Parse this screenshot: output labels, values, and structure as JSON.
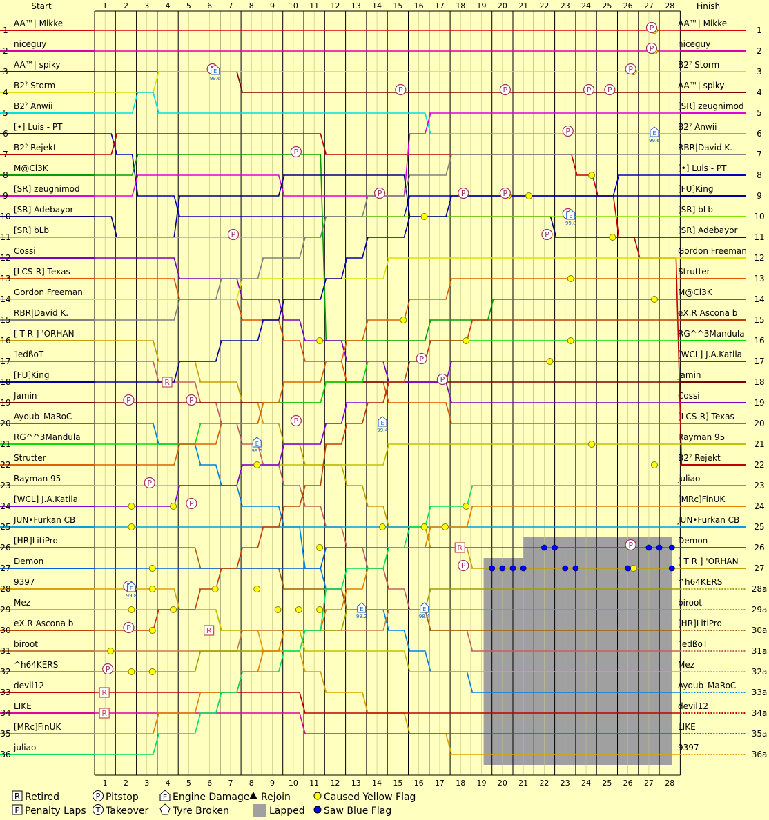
{
  "chart_data": {
    "type": "line",
    "title": "",
    "header_left": "Start",
    "header_right": "Finish",
    "laps": 28,
    "positions": 36,
    "start_order": [
      "AA™| Mikke",
      "niceguy",
      "AA™| spiky",
      "B2ˀ Storm",
      "B2ˀ Anwii",
      "[•] Luis - PT",
      "B2ˀ Rejekt",
      "M@Cl3K",
      "[SR] zeugnimod",
      "[SR] Adebayor",
      "[SR] bLb",
      "Cossi",
      "[LCS-R] Texas",
      "Gordon Freeman",
      "RBR|David K.",
      "[ T R ] 'ORHAN",
      "˥edßoT",
      "[FU]King",
      "Jamin",
      "Ayoub_MaRoC",
      "RG^^3Mandula",
      "Strutter",
      "Rayman 95",
      "[WCL] J.A.Katila",
      "JUN•Furkan CB",
      "[HR]LitiPro",
      "Demon",
      "9397",
      "Mez",
      "eX.R Ascona b",
      "biroot",
      "^h64KERS",
      "devil12",
      "LIKE",
      "[MRc]FinUK",
      "juliao"
    ],
    "finish_order": [
      "AA™| Mikke",
      "niceguy",
      "B2ˀ Storm",
      "AA™| spiky",
      "[SR] zeugnimod",
      "B2ˀ Anwii",
      "RBR|David K.",
      "[•] Luis - PT",
      "[FU]King",
      "[SR] bLb",
      "[SR] Adebayor",
      "Gordon Freeman",
      "Strutter",
      "M@Cl3K",
      "eX.R Ascona b",
      "RG^^3Mandula",
      "[WCL] J.A.Katila",
      "Jamin",
      "Cossi",
      "[LCS-R] Texas",
      "Rayman 95",
      "B2ˀ Rejekt",
      "juliao",
      "[MRc]FinUK",
      "JUN•Furkan CB",
      "Demon",
      "[ T R ] 'ORHAN",
      "^h64KERS",
      "biroot",
      "[HR]LitiPro",
      "˥edßoT",
      "Mez",
      "Ayoub_MaRoC",
      "devil12",
      "LIKE",
      "9397"
    ],
    "finish_position_labels": [
      "1",
      "2",
      "3",
      "4",
      "5",
      "6",
      "7",
      "8",
      "9",
      "10",
      "11",
      "12",
      "13",
      "14",
      "15",
      "16",
      "17",
      "18",
      "19",
      "20",
      "21",
      "22",
      "23",
      "24",
      "25",
      "26",
      "27",
      "28a",
      "29a",
      "30a",
      "31a",
      "32a",
      "33a",
      "34a",
      "35a",
      "36a"
    ],
    "colors": [
      "#e00000",
      "#e000a0",
      "#800000",
      "#e0e000",
      "#00e0e0",
      "#0000c0",
      "#c00000",
      "#00a000",
      "#e000e0",
      "#000080",
      "#80e000",
      "#8000c0",
      "#e05000",
      "#e0e000",
      "#808080",
      "#c0a000",
      "#c06060",
      "#0000a0",
      "#800000",
      "#0080e0",
      "#00e000",
      "#e06000",
      "#c0c000",
      "#8000e0",
      "#00a0e0",
      "#a06000",
      "#0060e0",
      "#e0a000",
      "#c0c000",
      "#c04000",
      "#c08040",
      "#a0a000",
      "#c00000",
      "#e000a0",
      "#e08000",
      "#00e060"
    ],
    "lap_ranks": {
      "AA™| Mikke": [
        1,
        1,
        1,
        1,
        1,
        1,
        1,
        1,
        1,
        1,
        1,
        1,
        1,
        1,
        1,
        1,
        1,
        1,
        1,
        1,
        1,
        1,
        1,
        1,
        1,
        1,
        1,
        1,
        1
      ],
      "niceguy": [
        2,
        2,
        2,
        2,
        2,
        2,
        2,
        2,
        2,
        2,
        2,
        2,
        2,
        2,
        2,
        2,
        2,
        2,
        2,
        2,
        2,
        2,
        2,
        2,
        2,
        2,
        2,
        2,
        2
      ],
      "AA™| spiky": [
        3,
        3,
        3,
        3,
        3,
        3,
        3,
        4,
        4,
        4,
        4,
        4,
        4,
        4,
        4,
        4,
        4,
        4,
        4,
        4,
        4,
        4,
        4,
        4,
        4,
        4,
        4,
        4,
        4
      ],
      "B2ˀ Storm": [
        4,
        4,
        4,
        3,
        3,
        3,
        3,
        3,
        3,
        3,
        3,
        3,
        3,
        3,
        3,
        3,
        3,
        3,
        3,
        3,
        3,
        3,
        3,
        3,
        3,
        3,
        3,
        3,
        3
      ],
      "B2ˀ Anwii": [
        5,
        5,
        4,
        5,
        5,
        5,
        5,
        5,
        5,
        5,
        5,
        5,
        5,
        5,
        5,
        5,
        6,
        6,
        6,
        6,
        6,
        6,
        6,
        6,
        6,
        6,
        6,
        6,
        6
      ],
      "[•] Luis - PT": [
        6,
        7,
        9,
        9,
        10,
        10,
        10,
        10,
        10,
        10,
        10,
        10,
        10,
        10,
        10,
        9,
        9,
        9,
        9,
        9,
        9,
        9,
        9,
        9,
        9,
        8,
        8,
        8,
        8
      ],
      "B2ˀ Rejekt": [
        7,
        6,
        6,
        6,
        6,
        6,
        6,
        6,
        6,
        6,
        6,
        7,
        7,
        7,
        7,
        7,
        7,
        7,
        7,
        7,
        7,
        7,
        7,
        8,
        9,
        11,
        12,
        12,
        22
      ],
      "M@Cl3K": [
        8,
        8,
        7,
        7,
        7,
        7,
        7,
        7,
        7,
        7,
        7,
        16,
        16,
        16,
        16,
        16,
        15,
        15,
        15,
        14,
        14,
        14,
        14,
        14,
        14,
        14,
        14,
        14,
        14
      ],
      "[SR] zeugnimod": [
        9,
        9,
        8,
        8,
        8,
        8,
        8,
        8,
        8,
        9,
        9,
        9,
        9,
        9,
        9,
        6,
        5,
        5,
        5,
        5,
        5,
        5,
        5,
        5,
        5,
        5,
        5,
        5,
        5
      ],
      "[SR] Adebayor": [
        10,
        11,
        11,
        11,
        9,
        9,
        9,
        9,
        9,
        8,
        8,
        8,
        8,
        8,
        8,
        10,
        10,
        10,
        10,
        10,
        10,
        10,
        11,
        11,
        11,
        11,
        11,
        11,
        11
      ]
    },
    "pitstops": [
      {
        "lap": 2,
        "pos": 19
      },
      {
        "lap": 6,
        "pos": 3
      },
      {
        "lap": 7,
        "pos": 11
      },
      {
        "lap": 10,
        "pos": 7
      },
      {
        "lap": 10,
        "pos": 20
      },
      {
        "lap": 14,
        "pos": 9
      },
      {
        "lap": 15,
        "pos": 4
      },
      {
        "lap": 16,
        "pos": 17
      },
      {
        "lap": 17,
        "pos": 18
      },
      {
        "lap": 18,
        "pos": 9
      },
      {
        "lap": 20,
        "pos": 4
      },
      {
        "lap": 20,
        "pos": 9
      },
      {
        "lap": 22,
        "pos": 11
      },
      {
        "lap": 23,
        "pos": 10
      },
      {
        "lap": 23,
        "pos": 6
      },
      {
        "lap": 24,
        "pos": 4
      },
      {
        "lap": 25,
        "pos": 4
      },
      {
        "lap": 27,
        "pos": 1
      },
      {
        "lap": 27,
        "pos": 2
      },
      {
        "lap": 26,
        "pos": 3
      },
      {
        "lap": 3,
        "pos": 23
      },
      {
        "lap": 2,
        "pos": 28
      },
      {
        "lap": 2,
        "pos": 30
      },
      {
        "lap": 1,
        "pos": 32
      },
      {
        "lap": 5,
        "pos": 24
      },
      {
        "lap": 5,
        "pos": 19
      },
      {
        "lap": 18,
        "pos": 27
      },
      {
        "lap": 26,
        "pos": 26
      }
    ],
    "retired": [
      {
        "lap": 1,
        "pos": 33
      },
      {
        "lap": 1,
        "pos": 34
      },
      {
        "lap": 4,
        "pos": 18
      },
      {
        "lap": 6,
        "pos": 30
      },
      {
        "lap": 18,
        "pos": 26
      }
    ],
    "engine_damage": [
      {
        "lap": 6,
        "pos": 3,
        "label": "99.6"
      },
      {
        "lap": 8,
        "pos": 21,
        "label": "99.6"
      },
      {
        "lap": 13,
        "pos": 29,
        "label": "99.2"
      },
      {
        "lap": 16,
        "pos": 29,
        "label": "98.4"
      },
      {
        "lap": 14,
        "pos": 20,
        "label": "99.4"
      },
      {
        "lap": 27,
        "pos": 6,
        "label": "99.6"
      },
      {
        "lap": 23,
        "pos": 10,
        "label": "99.8"
      },
      {
        "lap": 2,
        "pos": 28,
        "label": "99.8"
      }
    ],
    "yellow_flags": [
      {
        "lap": 27,
        "pos": 1
      },
      {
        "lap": 27,
        "pos": 2
      },
      {
        "lap": 26,
        "pos": 3
      },
      {
        "lap": 16,
        "pos": 10
      },
      {
        "lap": 24,
        "pos": 8
      },
      {
        "lap": 20,
        "pos": 9
      },
      {
        "lap": 21,
        "pos": 9
      },
      {
        "lap": 25,
        "pos": 11
      },
      {
        "lap": 23,
        "pos": 13
      },
      {
        "lap": 27,
        "pos": 14
      },
      {
        "lap": 15,
        "pos": 15
      },
      {
        "lap": 11,
        "pos": 16
      },
      {
        "lap": 18,
        "pos": 16
      },
      {
        "lap": 23,
        "pos": 16
      },
      {
        "lap": 22,
        "pos": 17
      },
      {
        "lap": 24,
        "pos": 21
      },
      {
        "lap": 8,
        "pos": 22
      },
      {
        "lap": 27,
        "pos": 22
      },
      {
        "lap": 18,
        "pos": 24
      },
      {
        "lap": 2,
        "pos": 24
      },
      {
        "lap": 4,
        "pos": 24
      },
      {
        "lap": 14,
        "pos": 25
      },
      {
        "lap": 16,
        "pos": 25
      },
      {
        "lap": 17,
        "pos": 25
      },
      {
        "lap": 2,
        "pos": 25
      },
      {
        "lap": 11,
        "pos": 26
      },
      {
        "lap": 3,
        "pos": 27
      },
      {
        "lap": 26,
        "pos": 27
      },
      {
        "lap": 3,
        "pos": 28
      },
      {
        "lap": 6,
        "pos": 28
      },
      {
        "lap": 8,
        "pos": 28
      },
      {
        "lap": 2,
        "pos": 29
      },
      {
        "lap": 4,
        "pos": 29
      },
      {
        "lap": 9,
        "pos": 29
      },
      {
        "lap": 10,
        "pos": 29
      },
      {
        "lap": 11,
        "pos": 29
      },
      {
        "lap": 3,
        "pos": 30
      },
      {
        "lap": 1,
        "pos": 31
      },
      {
        "lap": 2,
        "pos": 32
      },
      {
        "lap": 3,
        "pos": 32
      }
    ],
    "blue_flags": [
      {
        "lap": 19,
        "pos": 27
      },
      {
        "lap": 19.5,
        "pos": 27
      },
      {
        "lap": 20,
        "pos": 27
      },
      {
        "lap": 20.5,
        "pos": 27
      },
      {
        "lap": 21.5,
        "pos": 26
      },
      {
        "lap": 22,
        "pos": 26
      },
      {
        "lap": 22.5,
        "pos": 27
      },
      {
        "lap": 23,
        "pos": 27
      },
      {
        "lap": 25.5,
        "pos": 27
      },
      {
        "lap": 26.5,
        "pos": 26
      },
      {
        "lap": 27,
        "pos": 26
      },
      {
        "lap": 27.6,
        "pos": 26
      },
      {
        "lap": 27.6,
        "pos": 27
      }
    ],
    "lapped_regions": [
      {
        "lap_from": 18.6,
        "lap_to": 27.6,
        "pos_from": 26.5,
        "pos_to": 36.5
      },
      {
        "lap_from": 20.5,
        "lap_to": 27.6,
        "pos_from": 25.5,
        "pos_to": 26.5
      }
    ],
    "legend": [
      {
        "symbol": "R",
        "shape": "square",
        "label": "Retired"
      },
      {
        "symbol": "P",
        "shape": "square",
        "label": "Penalty Laps"
      },
      {
        "symbol": "P",
        "shape": "circle",
        "label": "Pitstop"
      },
      {
        "symbol": "T",
        "shape": "circle",
        "label": "Takeover"
      },
      {
        "symbol": "E",
        "shape": "house",
        "label": "Engine Damage"
      },
      {
        "symbol": "",
        "shape": "pentagon",
        "label": "Tyre Broken"
      },
      {
        "symbol": "",
        "shape": "triangle",
        "label": "Rejoin"
      },
      {
        "symbol": "",
        "shape": "graybox",
        "label": "Lapped"
      },
      {
        "symbol": "",
        "shape": "yellowdot",
        "label": "Caused Yellow Flag"
      },
      {
        "symbol": "",
        "shape": "bluedot",
        "label": "Saw Blue Flag"
      }
    ]
  }
}
